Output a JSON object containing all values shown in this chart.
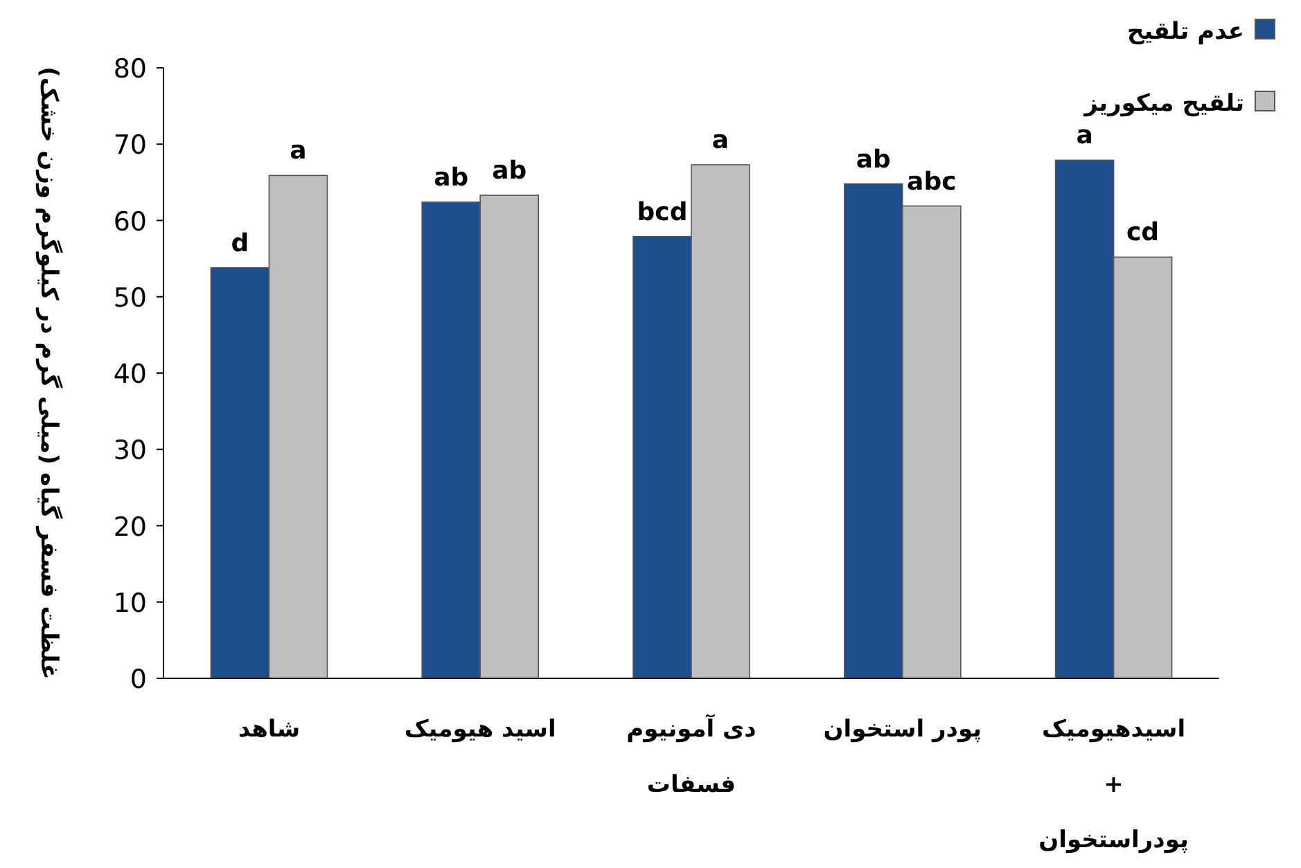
{
  "chart_data": {
    "type": "bar",
    "categories": [
      "شاهد",
      "اسید هیومیک",
      "دی آمونیوم\nفسفات",
      "پودر استخوان",
      "اسیدهیومیک\n+\nپودراستخوان"
    ],
    "series": [
      {
        "name": "عدم تلقیح",
        "color": "#1f4e8c",
        "values": [
          53.8,
          62.4,
          57.9,
          64.8,
          67.9
        ]
      },
      {
        "name": "تلقیح میکوریز",
        "color": "#bfbfbf",
        "values": [
          65.9,
          63.3,
          67.3,
          61.9,
          55.2
        ]
      }
    ],
    "ylabel": "غلظت فسفر گیاه (میلی گرم در کیلوگرم وزن خشک)",
    "ylim": [
      0,
      80
    ],
    "yticks": [
      0,
      10,
      20,
      30,
      40,
      50,
      60,
      70,
      80
    ],
    "grid": false,
    "legend": "top right",
    "annotations": [
      {
        "text": "d",
        "x": "شاهد",
        "y": 53.8
      },
      {
        "text": "a",
        "x": "شاهد",
        "y": 65.9
      },
      {
        "text": "ab",
        "x": "اسید هیومیک",
        "y": 62.4
      },
      {
        "text": "ab",
        "x": "اسید هیومیک",
        "y": 63.3
      },
      {
        "text": "bcd",
        "x": "دی آمونیوم\nفسفات",
        "y": 57.9
      },
      {
        "text": "a",
        "x": "دی آمونیوم\nفسفات",
        "y": 67.3
      },
      {
        "text": "ab",
        "x": "پودر استخوان",
        "y": 64.8
      },
      {
        "text": "abc",
        "x": "پودر استخوان",
        "y": 61.9
      },
      {
        "text": "a",
        "x": "اسیدهیومیک\n+\nپودراستخوان",
        "y": 67.9
      },
      {
        "text": "cd",
        "x": "اسیدهیومیک\n+\nپودراستخوان",
        "y": 55.2
      }
    ]
  }
}
